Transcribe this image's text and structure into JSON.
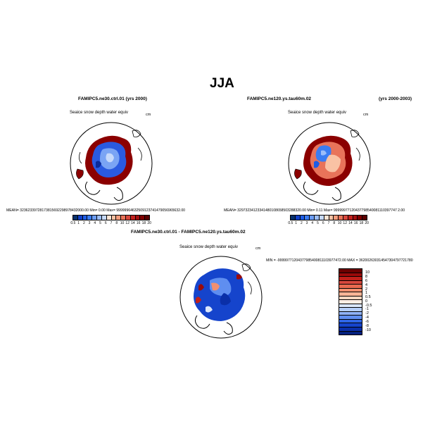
{
  "figure": {
    "title": "JJA",
    "panel1": {
      "case": "FAMIPC5.ne30.ctrl.01 (yrs 2000)",
      "variable": "Seaice snow depth water equiv",
      "units": "cm",
      "stats": "MEAN= 32362339728173815692298978432000.00  Min=     0.00  Max= 99999964632509123741479056965632.00"
    },
    "panel2": {
      "case": "FAMIPC5.ne120.ys.tau60m.02",
      "years": "(yrs 2000-2003)",
      "variable": "Seaice snow depth water equiv",
      "units": "cm",
      "stats": "MEAN= 32973234123341480108658503288320.00  Min=     0.11  Max= 99999977120437798540081110397747 2.00"
    },
    "panel3": {
      "case": "FAMIPC5.ne30.ctrl.01 - FAMIPC5.ne120.ys.tau60m.02",
      "variable": "Seaice snow depth water equiv",
      "units": "cm",
      "minmax": "MIN = -99999771204377985400811103977472.00  MAX = 362002630314547304797721780"
    },
    "colorbar_abs": {
      "labels": [
        "0.5",
        "1",
        "2",
        "3",
        "4",
        "5",
        "6",
        "7",
        "8",
        "10",
        "12",
        "14",
        "16",
        "18",
        "20"
      ],
      "colors": [
        "#08306b",
        "#1240c8",
        "#1d5ce6",
        "#3b7cf2",
        "#6b9cf6",
        "#9cbdf9",
        "#c6d9fb",
        "#fde4d4",
        "#f9c2a4",
        "#f39c7c",
        "#e8735a",
        "#d8473c",
        "#c2221f",
        "#a40f10",
        "#7f0000",
        "#5a0000"
      ]
    },
    "colorbar_diff": {
      "labels": [
        "10",
        "8",
        "6",
        "4",
        "2",
        "1",
        "0.5",
        "0",
        "-0.5",
        "-1",
        "-2",
        "-4",
        "-6",
        "-8",
        "-10"
      ],
      "colors": [
        "#6b0000",
        "#9a0a0a",
        "#c0201a",
        "#d8473c",
        "#e86a50",
        "#f39070",
        "#f8b496",
        "#fbd6bf",
        "#fdeee4",
        "#dbe7fb",
        "#b6cff9",
        "#8fb1f5",
        "#5f8ef0",
        "#3066e6",
        "#1544cc",
        "#0a2fa8",
        "#04207e"
      ]
    }
  }
}
